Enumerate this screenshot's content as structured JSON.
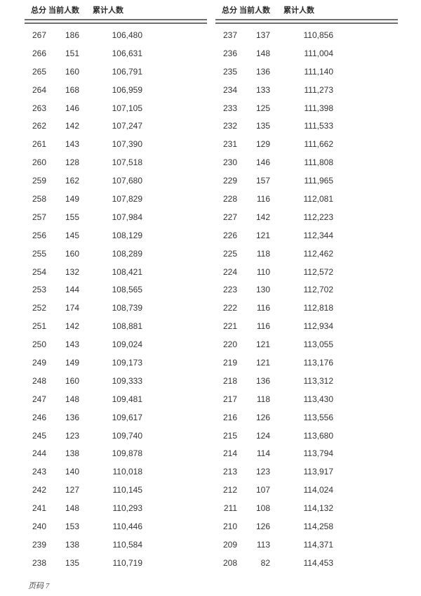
{
  "page": {
    "footer": "页码 7"
  },
  "columns": [
    "总分",
    "当前人数",
    "累计人数"
  ],
  "tables": [
    {
      "name": "left",
      "rows": [
        [
          267,
          186,
          "106,480"
        ],
        [
          266,
          151,
          "106,631"
        ],
        [
          265,
          160,
          "106,791"
        ],
        [
          264,
          168,
          "106,959"
        ],
        [
          263,
          146,
          "107,105"
        ],
        [
          262,
          142,
          "107,247"
        ],
        [
          261,
          143,
          "107,390"
        ],
        [
          260,
          128,
          "107,518"
        ],
        [
          259,
          162,
          "107,680"
        ],
        [
          258,
          149,
          "107,829"
        ],
        [
          257,
          155,
          "107,984"
        ],
        [
          256,
          145,
          "108,129"
        ],
        [
          255,
          160,
          "108,289"
        ],
        [
          254,
          132,
          "108,421"
        ],
        [
          253,
          144,
          "108,565"
        ],
        [
          252,
          174,
          "108,739"
        ],
        [
          251,
          142,
          "108,881"
        ],
        [
          250,
          143,
          "109,024"
        ],
        [
          249,
          149,
          "109,173"
        ],
        [
          248,
          160,
          "109,333"
        ],
        [
          247,
          148,
          "109,481"
        ],
        [
          246,
          136,
          "109,617"
        ],
        [
          245,
          123,
          "109,740"
        ],
        [
          244,
          138,
          "109,878"
        ],
        [
          243,
          140,
          "110,018"
        ],
        [
          242,
          127,
          "110,145"
        ],
        [
          241,
          148,
          "110,293"
        ],
        [
          240,
          153,
          "110,446"
        ],
        [
          239,
          138,
          "110,584"
        ],
        [
          238,
          135,
          "110,719"
        ]
      ]
    },
    {
      "name": "right",
      "rows": [
        [
          237,
          137,
          "110,856"
        ],
        [
          236,
          148,
          "111,004"
        ],
        [
          235,
          136,
          "111,140"
        ],
        [
          234,
          133,
          "111,273"
        ],
        [
          233,
          125,
          "111,398"
        ],
        [
          232,
          135,
          "111,533"
        ],
        [
          231,
          129,
          "111,662"
        ],
        [
          230,
          146,
          "111,808"
        ],
        [
          229,
          157,
          "111,965"
        ],
        [
          228,
          116,
          "112,081"
        ],
        [
          227,
          142,
          "112,223"
        ],
        [
          226,
          121,
          "112,344"
        ],
        [
          225,
          118,
          "112,462"
        ],
        [
          224,
          110,
          "112,572"
        ],
        [
          223,
          130,
          "112,702"
        ],
        [
          222,
          116,
          "112,818"
        ],
        [
          221,
          116,
          "112,934"
        ],
        [
          220,
          121,
          "113,055"
        ],
        [
          219,
          121,
          "113,176"
        ],
        [
          218,
          136,
          "113,312"
        ],
        [
          217,
          118,
          "113,430"
        ],
        [
          216,
          126,
          "113,556"
        ],
        [
          215,
          124,
          "113,680"
        ],
        [
          214,
          114,
          "113,794"
        ],
        [
          213,
          123,
          "113,917"
        ],
        [
          212,
          107,
          "114,024"
        ],
        [
          211,
          108,
          "114,132"
        ],
        [
          210,
          126,
          "114,258"
        ],
        [
          209,
          113,
          "114,371"
        ],
        [
          208,
          82,
          "114,453"
        ]
      ]
    }
  ],
  "colors": {
    "text": "#333333",
    "header_text": "#2a2a2a",
    "rule": "#6f6f6f",
    "footer_text": "#4a4a4a",
    "background": "#ffffff"
  }
}
